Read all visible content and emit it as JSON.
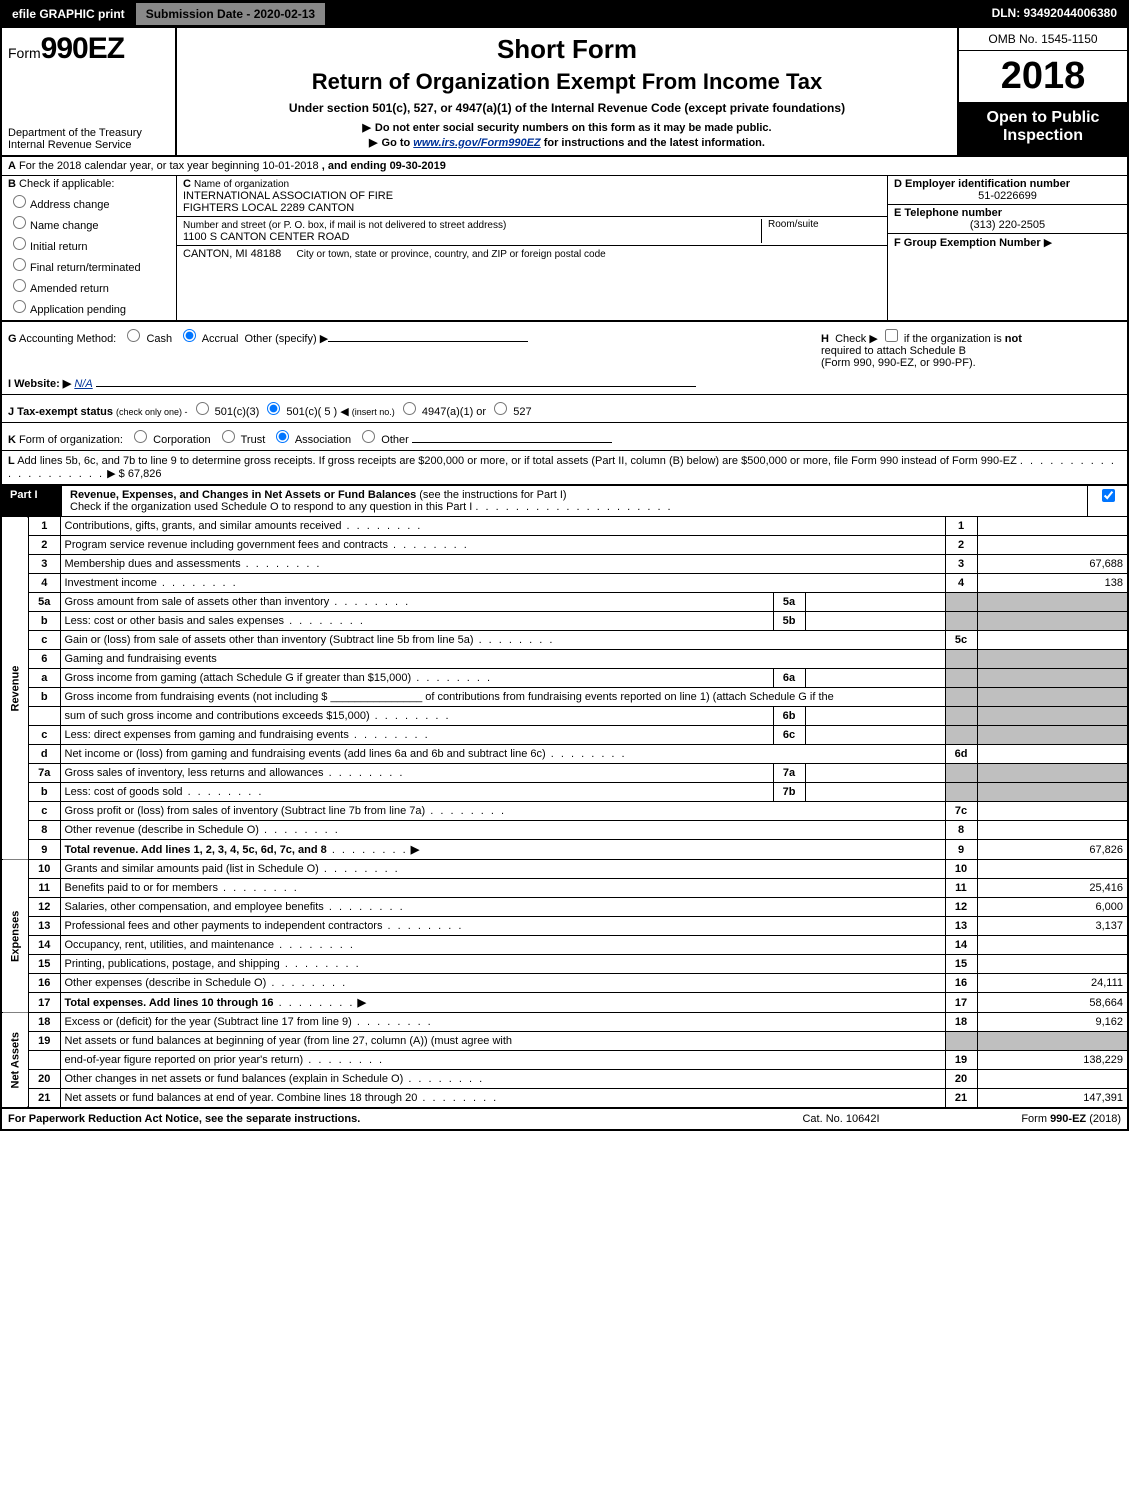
{
  "colors": {
    "black": "#000000",
    "white": "#ffffff",
    "gray_shade": "#bfbfbf",
    "topbar_gray": "#888888",
    "link": "#003399"
  },
  "topbar": {
    "efile_btn": "efile GRAPHIC print",
    "submission_label": "Submission Date - 2020-02-13",
    "dln": "DLN: 93492044006380"
  },
  "header": {
    "form_prefix": "Form",
    "form_number": "990EZ",
    "dept1": "Department of the Treasury",
    "dept2": "Internal Revenue Service",
    "short_form": "Short Form",
    "title": "Return of Organization Exempt From Income Tax",
    "subtitle": "Under section 501(c), 527, or 4947(a)(1) of the Internal Revenue Code (except private foundations)",
    "instr1": "Do not enter social security numbers on this form as it may be made public.",
    "instr2_pre": "Go to ",
    "instr2_link": "www.irs.gov/Form990EZ",
    "instr2_post": " for instructions and the latest information.",
    "omb": "OMB No. 1545-1150",
    "year": "2018",
    "open1": "Open to Public",
    "open2": "Inspection"
  },
  "lineA": {
    "label_a": "A",
    "text": " For the 2018 calendar year, or tax year beginning 10-01-2018",
    "ending": ", and ending 09-30-2019"
  },
  "entity": {
    "b_label": "B",
    "check_if": "Check if applicable:",
    "opts": {
      "address": "Address change",
      "name": "Name change",
      "initial": "Initial return",
      "final": "Final return/terminated",
      "amended": "Amended return",
      "pending": "Application pending"
    },
    "c_label": "C",
    "c_text": "Name of organization",
    "org_name1": "INTERNATIONAL ASSOCIATION OF FIRE",
    "org_name2": "FIGHTERS LOCAL 2289 CANTON",
    "street_label": "Number and street (or P. O. box, if mail is not delivered to street address)",
    "street": "1100 S CANTON CENTER ROAD",
    "roomsuite_label": "Room/suite",
    "city_state": "CANTON, MI  48188",
    "city_instr": "City or town, state or province, country, and ZIP or foreign postal code",
    "d_label": "D Employer identification number",
    "ein": "51-0226699",
    "e_label": "E Telephone number",
    "phone": "(313) 220-2505",
    "f_label": "F Group Exemption Number",
    "f_arrow": "▶"
  },
  "gh": {
    "g_label": "G",
    "g_text": "Accounting Method:",
    "g_cash": "Cash",
    "g_accrual": "Accrual",
    "g_other": "Other (specify) ▶",
    "h_label": "H",
    "h_text1": "Check ▶",
    "h_text2": "if the organization is ",
    "h_not": "not",
    "h_text3": " required to attach Schedule B",
    "h_text4": "(Form 990, 990-EZ, or 990-PF).",
    "i_label": "I Website: ▶",
    "i_value": "N/A",
    "j_label": "J Tax-exempt status",
    "j_paren": "(check only one) -",
    "j_501c3": "501(c)(3)",
    "j_501c": "501(c)( 5 )",
    "j_insert": "(insert no.)",
    "j_4947": "4947(a)(1) or",
    "j_527": "527",
    "k_label": "K",
    "k_text": "Form of organization:",
    "k_corp": "Corporation",
    "k_trust": "Trust",
    "k_assoc": "Association",
    "k_other": "Other",
    "l_label": "L",
    "l_text": "Add lines 5b, 6c, and 7b to line 9 to determine gross receipts. If gross receipts are $200,000 or more, or if total assets (Part II, column (B) below) are $500,000 or more, file Form 990 instead of Form 990-EZ",
    "l_arrow": "▶",
    "l_amount": "$ 67,826"
  },
  "part1": {
    "part_label": "Part I",
    "part_title": "Revenue, Expenses, and Changes in Net Assets or Fund Balances",
    "part_paren": "(see the instructions for Part I)",
    "check_text": "Check if the organization used Schedule O to respond to any question in this Part I",
    "checked": true,
    "sections": {
      "revenue": "Revenue",
      "expenses": "Expenses",
      "netassets": "Net Assets"
    }
  },
  "lines": [
    {
      "n": "1",
      "desc": "Contributions, gifts, grants, and similar amounts received",
      "rn": "1",
      "amt": ""
    },
    {
      "n": "2",
      "desc": "Program service revenue including government fees and contracts",
      "rn": "2",
      "amt": ""
    },
    {
      "n": "3",
      "desc": "Membership dues and assessments",
      "rn": "3",
      "amt": "67,688"
    },
    {
      "n": "4",
      "desc": "Investment income",
      "rn": "4",
      "amt": "138"
    },
    {
      "n": "5a",
      "desc": "Gross amount from sale of assets other than inventory",
      "in": "5a",
      "ia": "",
      "shaded": true
    },
    {
      "n": "b",
      "desc": "Less: cost or other basis and sales expenses",
      "in": "5b",
      "ia": "",
      "shaded": true
    },
    {
      "n": "c",
      "desc": "Gain or (loss) from sale of assets other than inventory (Subtract line 5b from line 5a)",
      "rn": "5c",
      "amt": ""
    },
    {
      "n": "6",
      "desc": "Gaming and fundraising events",
      "shaded": true,
      "noright": true
    },
    {
      "n": "a",
      "desc": "Gross income from gaming (attach Schedule G if greater than $15,000)",
      "in": "6a",
      "ia": "",
      "shaded": true
    },
    {
      "n": "b",
      "desc_html": "Gross income from fundraising events (not including $ _______________ of contributions from fundraising events reported on line 1) (attach Schedule G if the",
      "shaded": true,
      "noright": true,
      "multiline": true
    },
    {
      "n": "",
      "desc": "sum of such gross income and contributions exceeds $15,000)",
      "in": "6b",
      "ia": "",
      "shaded": true
    },
    {
      "n": "c",
      "desc": "Less: direct expenses from gaming and fundraising events",
      "in": "6c",
      "ia": "",
      "shaded": true
    },
    {
      "n": "d",
      "desc": "Net income or (loss) from gaming and fundraising events (add lines 6a and 6b and subtract line 6c)",
      "rn": "6d",
      "amt": ""
    },
    {
      "n": "7a",
      "desc": "Gross sales of inventory, less returns and allowances",
      "in": "7a",
      "ia": "",
      "shaded": true
    },
    {
      "n": "b",
      "desc": "Less: cost of goods sold",
      "in": "7b",
      "ia": "",
      "shaded": true
    },
    {
      "n": "c",
      "desc": "Gross profit or (loss) from sales of inventory (Subtract line 7b from line 7a)",
      "rn": "7c",
      "amt": ""
    },
    {
      "n": "8",
      "desc": "Other revenue (describe in Schedule O)",
      "rn": "8",
      "amt": ""
    },
    {
      "n": "9",
      "desc": "Total revenue. Add lines 1, 2, 3, 4, 5c, 6d, 7c, and 8",
      "rn": "9",
      "amt": "67,826",
      "bold": true,
      "arrow": true
    }
  ],
  "exp_lines": [
    {
      "n": "10",
      "desc": "Grants and similar amounts paid (list in Schedule O)",
      "rn": "10",
      "amt": ""
    },
    {
      "n": "11",
      "desc": "Benefits paid to or for members",
      "rn": "11",
      "amt": "25,416"
    },
    {
      "n": "12",
      "desc": "Salaries, other compensation, and employee benefits",
      "rn": "12",
      "amt": "6,000"
    },
    {
      "n": "13",
      "desc": "Professional fees and other payments to independent contractors",
      "rn": "13",
      "amt": "3,137"
    },
    {
      "n": "14",
      "desc": "Occupancy, rent, utilities, and maintenance",
      "rn": "14",
      "amt": ""
    },
    {
      "n": "15",
      "desc": "Printing, publications, postage, and shipping",
      "rn": "15",
      "amt": ""
    },
    {
      "n": "16",
      "desc": "Other expenses (describe in Schedule O)",
      "rn": "16",
      "amt": "24,111"
    },
    {
      "n": "17",
      "desc": "Total expenses. Add lines 10 through 16",
      "rn": "17",
      "amt": "58,664",
      "bold": true,
      "arrow": true
    }
  ],
  "na_lines": [
    {
      "n": "18",
      "desc": "Excess or (deficit) for the year (Subtract line 17 from line 9)",
      "rn": "18",
      "amt": "9,162"
    },
    {
      "n": "19",
      "desc": "Net assets or fund balances at beginning of year (from line 27, column (A)) (must agree with",
      "noright": true,
      "shaded": true
    },
    {
      "n": "",
      "desc": "end-of-year figure reported on prior year's return)",
      "rn": "19",
      "amt": "138,229"
    },
    {
      "n": "20",
      "desc": "Other changes in net assets or fund balances (explain in Schedule O)",
      "rn": "20",
      "amt": ""
    },
    {
      "n": "21",
      "desc": "Net assets or fund balances at end of year. Combine lines 18 through 20",
      "rn": "21",
      "amt": "147,391"
    }
  ],
  "footer": {
    "left": "For Paperwork Reduction Act Notice, see the separate instructions.",
    "center": "Cat. No. 10642I",
    "right_pre": "Form ",
    "right_bold": "990-EZ",
    "right_post": " (2018)"
  }
}
